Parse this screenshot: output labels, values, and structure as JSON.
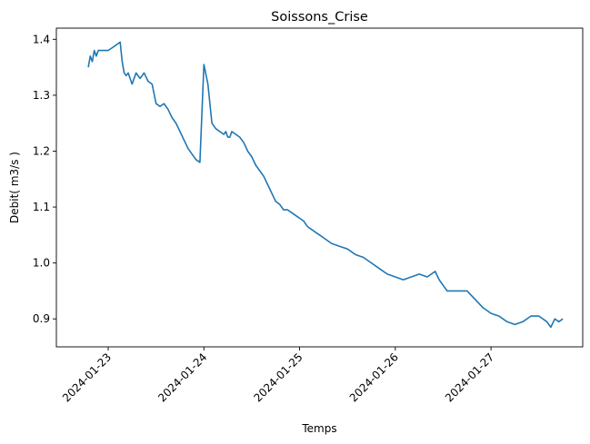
{
  "chart_data": {
    "type": "line",
    "title": "Soissons_Crise",
    "xlabel": "Temps",
    "ylabel": "Debit( m3/s )",
    "x_axis": "date",
    "x_ticks": [
      "2024-01-23",
      "2024-01-24",
      "2024-01-25",
      "2024-01-26",
      "2024-01-27"
    ],
    "y_ticks": [
      0.9,
      1.0,
      1.1,
      1.2,
      1.3,
      1.4
    ],
    "xlim": [
      "2024-01-22T11:00",
      "2024-01-27T23:00"
    ],
    "ylim": [
      0.85,
      1.42
    ],
    "grid": false,
    "line_color": "#1f77b4",
    "series": [
      {
        "x": [
          "2024-01-22T19:00",
          "2024-01-22T19:30",
          "2024-01-22T20:00",
          "2024-01-22T20:30",
          "2024-01-22T21:00",
          "2024-01-22T21:30",
          "2024-01-22T22:00",
          "2024-01-22T23:00",
          "2024-01-23T00:00",
          "2024-01-23T01:00",
          "2024-01-23T02:00",
          "2024-01-23T03:00",
          "2024-01-23T03:30",
          "2024-01-23T04:00",
          "2024-01-23T04:30",
          "2024-01-23T05:00",
          "2024-01-23T05:30",
          "2024-01-23T06:00",
          "2024-01-23T07:00",
          "2024-01-23T08:00",
          "2024-01-23T09:00",
          "2024-01-23T10:00",
          "2024-01-23T11:00",
          "2024-01-23T12:00",
          "2024-01-23T13:00",
          "2024-01-23T14:00",
          "2024-01-23T15:00",
          "2024-01-23T16:00",
          "2024-01-23T17:00",
          "2024-01-23T18:00",
          "2024-01-23T19:00",
          "2024-01-23T20:00",
          "2024-01-23T21:00",
          "2024-01-23T22:00",
          "2024-01-23T23:00",
          "2024-01-24T00:00",
          "2024-01-24T01:00",
          "2024-01-24T02:00",
          "2024-01-24T03:00",
          "2024-01-24T04:00",
          "2024-01-24T05:00",
          "2024-01-24T05:30",
          "2024-01-24T06:00",
          "2024-01-24T06:30",
          "2024-01-24T07:00",
          "2024-01-24T08:00",
          "2024-01-24T09:00",
          "2024-01-24T10:00",
          "2024-01-24T11:00",
          "2024-01-24T12:00",
          "2024-01-24T13:00",
          "2024-01-24T14:00",
          "2024-01-24T15:00",
          "2024-01-24T16:00",
          "2024-01-24T17:00",
          "2024-01-24T18:00",
          "2024-01-24T19:00",
          "2024-01-24T20:00",
          "2024-01-24T21:00",
          "2024-01-24T22:00",
          "2024-01-24T23:00",
          "2024-01-25T00:00",
          "2024-01-25T01:00",
          "2024-01-25T02:00",
          "2024-01-25T03:00",
          "2024-01-25T04:00",
          "2024-01-25T05:00",
          "2024-01-25T06:00",
          "2024-01-25T08:00",
          "2024-01-25T10:00",
          "2024-01-25T12:00",
          "2024-01-25T14:00",
          "2024-01-25T16:00",
          "2024-01-25T18:00",
          "2024-01-25T20:00",
          "2024-01-25T22:00",
          "2024-01-26T00:00",
          "2024-01-26T02:00",
          "2024-01-26T04:00",
          "2024-01-26T06:00",
          "2024-01-26T08:00",
          "2024-01-26T10:00",
          "2024-01-26T11:00",
          "2024-01-26T12:00",
          "2024-01-26T13:00",
          "2024-01-26T14:00",
          "2024-01-26T16:00",
          "2024-01-26T18:00",
          "2024-01-26T20:00",
          "2024-01-26T22:00",
          "2024-01-27T00:00",
          "2024-01-27T02:00",
          "2024-01-27T04:00",
          "2024-01-27T06:00",
          "2024-01-27T08:00",
          "2024-01-27T10:00",
          "2024-01-27T12:00",
          "2024-01-27T14:00",
          "2024-01-27T15:00",
          "2024-01-27T16:00",
          "2024-01-27T17:00",
          "2024-01-27T18:00"
        ],
        "values": [
          1.35,
          1.37,
          1.36,
          1.38,
          1.37,
          1.38,
          1.38,
          1.38,
          1.38,
          1.385,
          1.39,
          1.395,
          1.36,
          1.34,
          1.335,
          1.34,
          1.33,
          1.32,
          1.34,
          1.33,
          1.34,
          1.325,
          1.32,
          1.285,
          1.28,
          1.285,
          1.275,
          1.26,
          1.25,
          1.235,
          1.22,
          1.205,
          1.195,
          1.185,
          1.18,
          1.355,
          1.32,
          1.25,
          1.24,
          1.235,
          1.23,
          1.235,
          1.225,
          1.225,
          1.235,
          1.23,
          1.225,
          1.215,
          1.2,
          1.19,
          1.175,
          1.165,
          1.155,
          1.14,
          1.125,
          1.11,
          1.105,
          1.095,
          1.095,
          1.09,
          1.085,
          1.08,
          1.075,
          1.065,
          1.06,
          1.055,
          1.05,
          1.045,
          1.035,
          1.03,
          1.025,
          1.015,
          1.01,
          1.0,
          0.99,
          0.98,
          0.975,
          0.97,
          0.975,
          0.98,
          0.975,
          0.985,
          0.97,
          0.96,
          0.95,
          0.95,
          0.95,
          0.95,
          0.935,
          0.92,
          0.91,
          0.905,
          0.895,
          0.89,
          0.895,
          0.905,
          0.905,
          0.895,
          0.885,
          0.9,
          0.895,
          0.9
        ]
      }
    ]
  }
}
